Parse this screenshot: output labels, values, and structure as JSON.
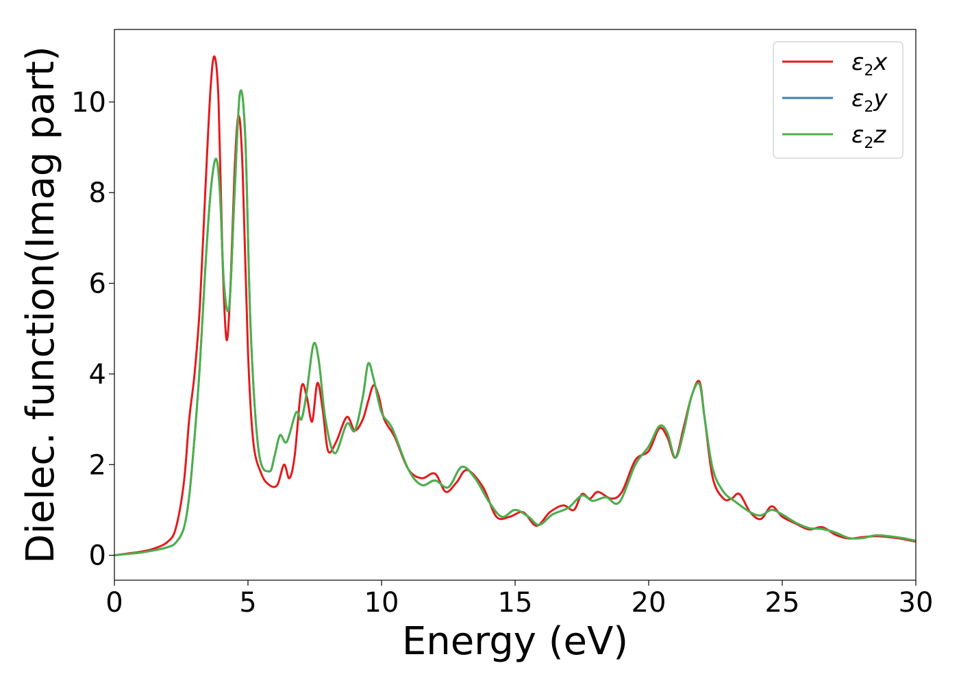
{
  "chart_data": {
    "type": "line",
    "xlabel": "Energy (eV)",
    "ylabel": "Dielec. function(Imag part)",
    "xlim": [
      0,
      30
    ],
    "ylim": [
      -0.55,
      11.6
    ],
    "xticks": [
      0,
      5,
      10,
      15,
      20,
      25,
      30
    ],
    "xtick_labels": [
      "0",
      "5",
      "10",
      "15",
      "20",
      "25",
      "30"
    ],
    "yticks": [
      0,
      2,
      4,
      6,
      8,
      10
    ],
    "ytick_labels": [
      "0",
      "2",
      "4",
      "6",
      "8",
      "10"
    ],
    "grid": false,
    "legend_position": "top-right",
    "series": [
      {
        "name": "ε2x",
        "legend_base": "ε",
        "legend_sub": "2",
        "legend_axis": "x",
        "color": "#e41a1c",
        "x": [
          0,
          0.5,
          1.0,
          1.5,
          2.0,
          2.3,
          2.6,
          2.8,
          3.0,
          3.2,
          3.4,
          3.6,
          3.75,
          3.9,
          4.05,
          4.2,
          4.35,
          4.5,
          4.65,
          4.8,
          5.0,
          5.2,
          5.5,
          5.8,
          6.1,
          6.35,
          6.55,
          6.75,
          7.0,
          7.2,
          7.4,
          7.6,
          7.8,
          8.0,
          8.3,
          8.7,
          9.0,
          9.3,
          9.5,
          9.7,
          9.9,
          10.1,
          10.5,
          11.0,
          11.5,
          12.0,
          12.4,
          12.8,
          13.2,
          13.8,
          14.3,
          14.8,
          15.3,
          15.8,
          16.3,
          16.8,
          17.2,
          17.5,
          17.8,
          18.1,
          18.6,
          19.0,
          19.5,
          20.0,
          20.4,
          20.7,
          21.0,
          21.3,
          21.6,
          21.9,
          22.1,
          22.4,
          22.8,
          23.1,
          23.4,
          23.8,
          24.2,
          24.6,
          25.0,
          25.5,
          26.0,
          26.5,
          27.0,
          27.5,
          28.0,
          28.5,
          29.0,
          29.5,
          30.0
        ],
        "y": [
          0.0,
          0.04,
          0.08,
          0.15,
          0.3,
          0.6,
          1.6,
          3.0,
          4.0,
          5.5,
          8.0,
          10.3,
          11.0,
          10.0,
          6.5,
          4.75,
          6.0,
          8.5,
          9.7,
          8.5,
          4.5,
          2.5,
          1.8,
          1.55,
          1.55,
          2.0,
          1.7,
          2.2,
          3.7,
          3.5,
          2.95,
          3.8,
          3.2,
          2.3,
          2.5,
          3.05,
          2.75,
          3.0,
          3.4,
          3.75,
          3.5,
          3.0,
          2.6,
          1.9,
          1.7,
          1.8,
          1.4,
          1.6,
          1.88,
          1.5,
          0.85,
          0.85,
          0.95,
          0.65,
          0.95,
          1.1,
          1.0,
          1.35,
          1.25,
          1.4,
          1.25,
          1.4,
          2.1,
          2.3,
          2.8,
          2.6,
          2.15,
          2.8,
          3.5,
          3.83,
          3.0,
          1.7,
          1.25,
          1.25,
          1.35,
          0.95,
          0.8,
          1.08,
          0.85,
          0.7,
          0.57,
          0.62,
          0.45,
          0.37,
          0.4,
          0.42,
          0.4,
          0.36,
          0.3
        ]
      },
      {
        "name": "ε2y",
        "legend_base": "ε",
        "legend_sub": "2",
        "legend_axis": "y",
        "color": "#377eb8",
        "x": [
          0,
          0.5,
          1.0,
          1.5,
          2.0,
          2.3,
          2.6,
          2.8,
          3.0,
          3.2,
          3.4,
          3.6,
          3.8,
          3.95,
          4.1,
          4.3,
          4.5,
          4.7,
          4.9,
          5.1,
          5.4,
          5.8,
          6.0,
          6.2,
          6.45,
          6.8,
          7.0,
          7.2,
          7.45,
          7.65,
          7.9,
          8.25,
          8.7,
          9.0,
          9.3,
          9.5,
          9.7,
          10.0,
          10.4,
          11.0,
          11.5,
          12.0,
          12.5,
          13.0,
          13.5,
          14.0,
          14.5,
          15.0,
          15.5,
          15.9,
          16.4,
          17.0,
          17.5,
          17.9,
          18.4,
          18.9,
          19.5,
          20.0,
          20.4,
          20.7,
          21.0,
          21.3,
          21.6,
          21.9,
          22.1,
          22.4,
          22.8,
          23.2,
          23.8,
          24.2,
          24.6,
          25.0,
          25.5,
          26.0,
          26.5,
          27.0,
          27.5,
          28.0,
          28.5,
          29.0,
          29.5,
          30.0
        ],
        "y": [
          0.0,
          0.03,
          0.06,
          0.11,
          0.18,
          0.28,
          0.6,
          1.3,
          2.6,
          4.2,
          6.3,
          8.0,
          8.75,
          8.0,
          6.0,
          5.5,
          8.0,
          10.2,
          9.2,
          5.0,
          2.3,
          1.85,
          2.2,
          2.65,
          2.5,
          3.15,
          3.0,
          3.6,
          4.65,
          4.3,
          3.0,
          2.25,
          2.9,
          2.75,
          3.5,
          4.23,
          3.9,
          3.15,
          2.8,
          1.9,
          1.55,
          1.65,
          1.5,
          1.95,
          1.7,
          1.2,
          0.85,
          1.0,
          0.85,
          0.67,
          0.9,
          1.05,
          1.32,
          1.2,
          1.28,
          1.17,
          2.0,
          2.4,
          2.85,
          2.7,
          2.15,
          2.7,
          3.5,
          3.78,
          3.0,
          1.9,
          1.4,
          1.2,
          0.95,
          0.88,
          1.0,
          0.9,
          0.72,
          0.6,
          0.58,
          0.5,
          0.38,
          0.38,
          0.44,
          0.42,
          0.38,
          0.32
        ]
      },
      {
        "name": "ε2z",
        "legend_base": "ε",
        "legend_sub": "2",
        "legend_axis": "z",
        "color": "#4daf4a",
        "x": [
          0,
          0.5,
          1.0,
          1.5,
          2.0,
          2.3,
          2.6,
          2.8,
          3.0,
          3.2,
          3.4,
          3.6,
          3.8,
          3.95,
          4.1,
          4.3,
          4.5,
          4.7,
          4.9,
          5.1,
          5.4,
          5.8,
          6.0,
          6.2,
          6.45,
          6.8,
          7.0,
          7.2,
          7.45,
          7.65,
          7.9,
          8.25,
          8.7,
          9.0,
          9.3,
          9.5,
          9.7,
          10.0,
          10.4,
          11.0,
          11.5,
          12.0,
          12.5,
          13.0,
          13.5,
          14.0,
          14.5,
          15.0,
          15.5,
          15.9,
          16.4,
          17.0,
          17.5,
          17.9,
          18.4,
          18.9,
          19.5,
          20.0,
          20.4,
          20.7,
          21.0,
          21.3,
          21.6,
          21.9,
          22.1,
          22.4,
          22.8,
          23.2,
          23.8,
          24.2,
          24.6,
          25.0,
          25.5,
          26.0,
          26.5,
          27.0,
          27.5,
          28.0,
          28.5,
          29.0,
          29.5,
          30.0
        ],
        "y": [
          0.0,
          0.03,
          0.06,
          0.11,
          0.18,
          0.28,
          0.6,
          1.3,
          2.6,
          4.2,
          6.3,
          8.0,
          8.75,
          8.0,
          6.0,
          5.5,
          8.0,
          10.2,
          9.2,
          5.0,
          2.3,
          1.85,
          2.2,
          2.65,
          2.5,
          3.15,
          3.0,
          3.6,
          4.65,
          4.3,
          3.0,
          2.25,
          2.9,
          2.75,
          3.5,
          4.23,
          3.9,
          3.15,
          2.8,
          1.9,
          1.55,
          1.65,
          1.5,
          1.95,
          1.7,
          1.2,
          0.85,
          1.0,
          0.85,
          0.67,
          0.9,
          1.05,
          1.32,
          1.2,
          1.28,
          1.17,
          2.0,
          2.4,
          2.85,
          2.7,
          2.15,
          2.7,
          3.5,
          3.78,
          3.0,
          1.9,
          1.4,
          1.2,
          0.95,
          0.88,
          1.0,
          0.9,
          0.72,
          0.6,
          0.58,
          0.5,
          0.38,
          0.38,
          0.44,
          0.42,
          0.38,
          0.32
        ]
      }
    ]
  }
}
